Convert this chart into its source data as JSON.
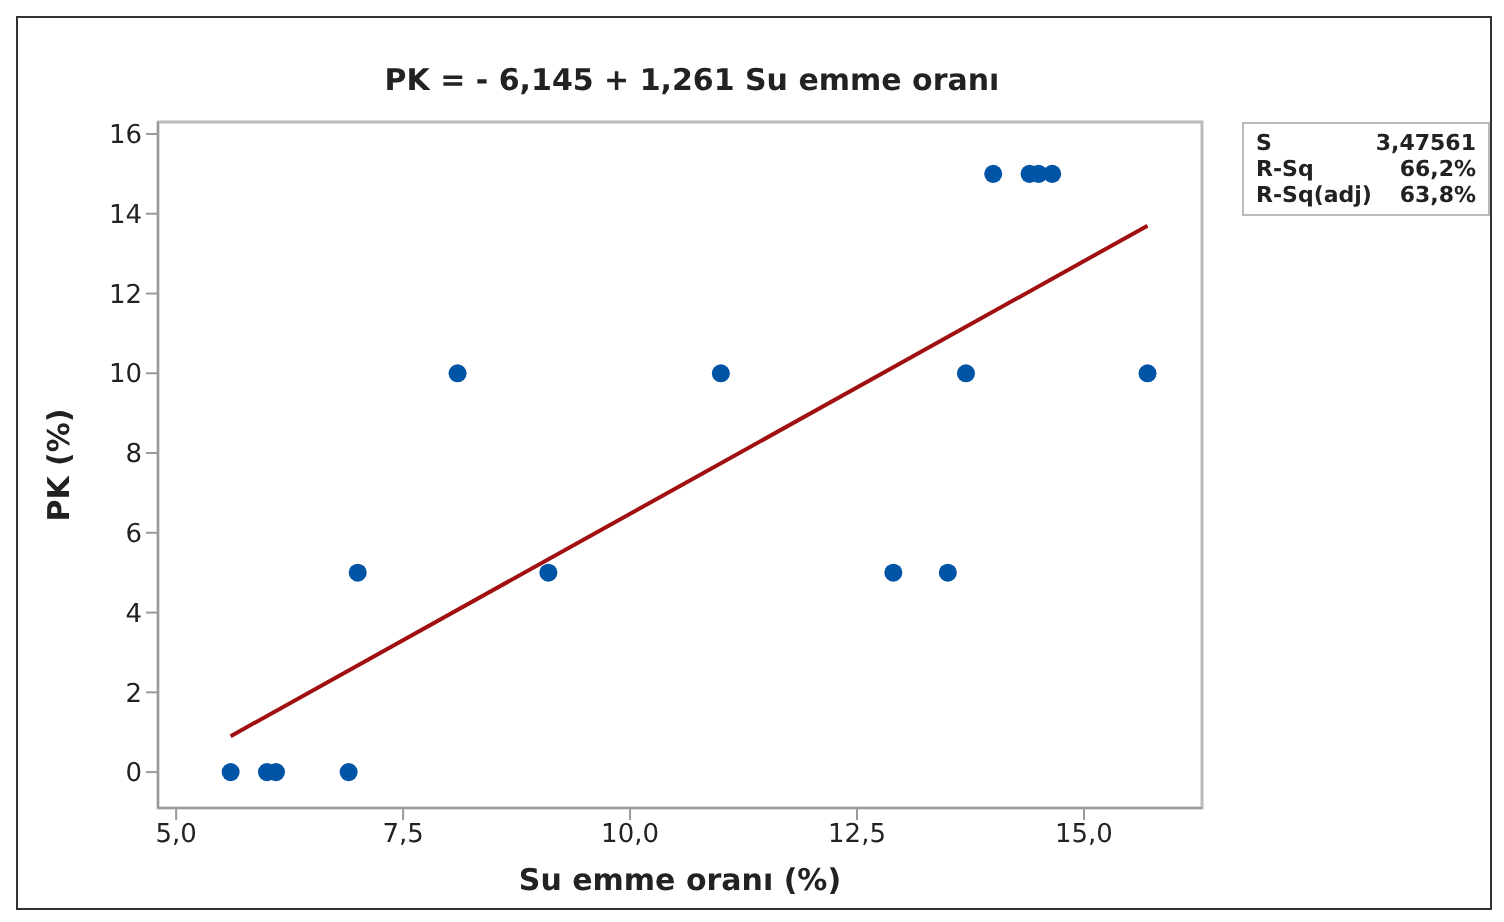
{
  "chart_data": {
    "type": "scatter",
    "title": "PK  = - 6,145 + 1,261 Su emme oranı",
    "xlabel": "Su emme oranı (%)",
    "ylabel": "PK (%)",
    "series": [
      {
        "color": "#0054a6",
        "x": [
          5.6,
          6.0,
          6.1,
          6.9,
          7.0,
          9.1,
          12.9,
          13.5,
          8.1,
          11.0,
          13.7,
          15.7,
          14.0,
          14.4,
          14.5,
          14.65
        ],
        "values": [
          0,
          0,
          0,
          0,
          5,
          5,
          5,
          5,
          10,
          10,
          10,
          10,
          15,
          15,
          15,
          15
        ]
      },
      {
        "type": "line",
        "marker": "none",
        "color": "#a01010",
        "x": [
          5.6,
          15.7
        ],
        "values": [
          0.9,
          13.7
        ]
      }
    ],
    "xlim": [
      4.8,
      16.3
    ],
    "xticks": [
      {
        "value": 5,
        "label": "5,0"
      },
      {
        "value": 7.5,
        "label": "7,5"
      },
      {
        "value": 10,
        "label": "10,0"
      },
      {
        "value": 12.5,
        "label": "12,5"
      },
      {
        "value": 15,
        "label": "15,0"
      }
    ],
    "ylim": [
      -0.9,
      16.3
    ],
    "yticks": [
      0,
      2,
      4,
      6,
      8,
      10,
      12,
      14,
      16
    ],
    "grid": false,
    "marker": "circle",
    "annotations": [
      "S",
      "3,47561",
      "R-Sq",
      "66,2%",
      "R-Sq(adj)",
      "63,8%"
    ]
  }
}
